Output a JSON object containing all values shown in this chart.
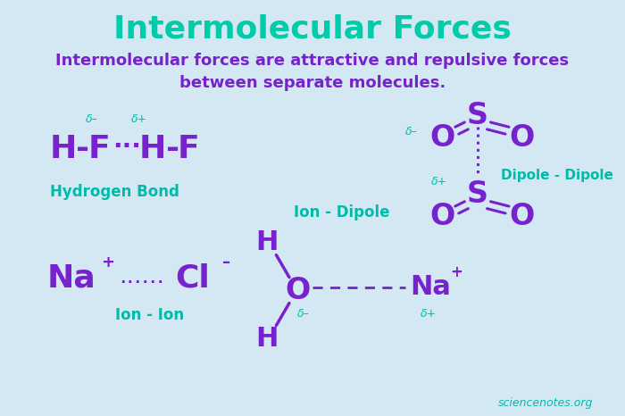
{
  "title": "Intermolecular Forces",
  "title_color": "#00CCAA",
  "subtitle": "Intermolecular forces are attractive and repulsive forces\nbetween separate molecules.",
  "subtitle_color": "#7722CC",
  "bg_color": "#D4E8F4",
  "purple": "#7722CC",
  "teal": "#00BBAA",
  "figsize": [
    7.0,
    4.66
  ],
  "dpi": 100,
  "watermark": "sciencenotes.org"
}
